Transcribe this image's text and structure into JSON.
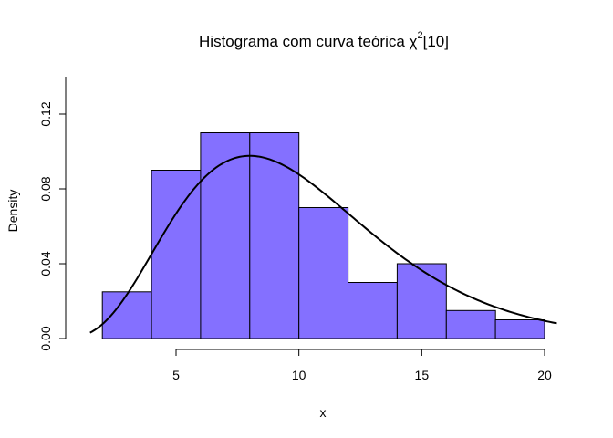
{
  "chart_data": {
    "type": "bar",
    "title_prefix": "Histograma com curva teórica ",
    "title_symbol": "χ",
    "title_superscript": "2",
    "title_suffix": "[10]",
    "xlabel": "x",
    "ylabel": "Density",
    "xlim": [
      1.2,
      20.8
    ],
    "ylim": [
      0,
      0.14
    ],
    "x_ticks": [
      5,
      10,
      15,
      20
    ],
    "y_ticks": [
      0.0,
      0.04,
      0.08,
      0.12
    ],
    "x_tick_labels": [
      "5",
      "10",
      "15",
      "20"
    ],
    "y_tick_labels": [
      "0.00",
      "0.04",
      "0.08",
      "0.12"
    ],
    "bins": [
      {
        "start": 2,
        "end": 4,
        "density": 0.025
      },
      {
        "start": 4,
        "end": 6,
        "density": 0.09
      },
      {
        "start": 6,
        "end": 8,
        "density": 0.11
      },
      {
        "start": 8,
        "end": 10,
        "density": 0.11
      },
      {
        "start": 10,
        "end": 12,
        "density": 0.07
      },
      {
        "start": 12,
        "end": 14,
        "density": 0.03
      },
      {
        "start": 14,
        "end": 16,
        "density": 0.04
      },
      {
        "start": 16,
        "end": 18,
        "density": 0.015
      },
      {
        "start": 18,
        "end": 20,
        "density": 0.01
      }
    ],
    "bar_color": "#8470FF",
    "curve": {
      "distribution": "chi-squared",
      "df": 10,
      "x_range": [
        1.5,
        20.5
      ]
    },
    "grid": false,
    "legend": "none"
  }
}
